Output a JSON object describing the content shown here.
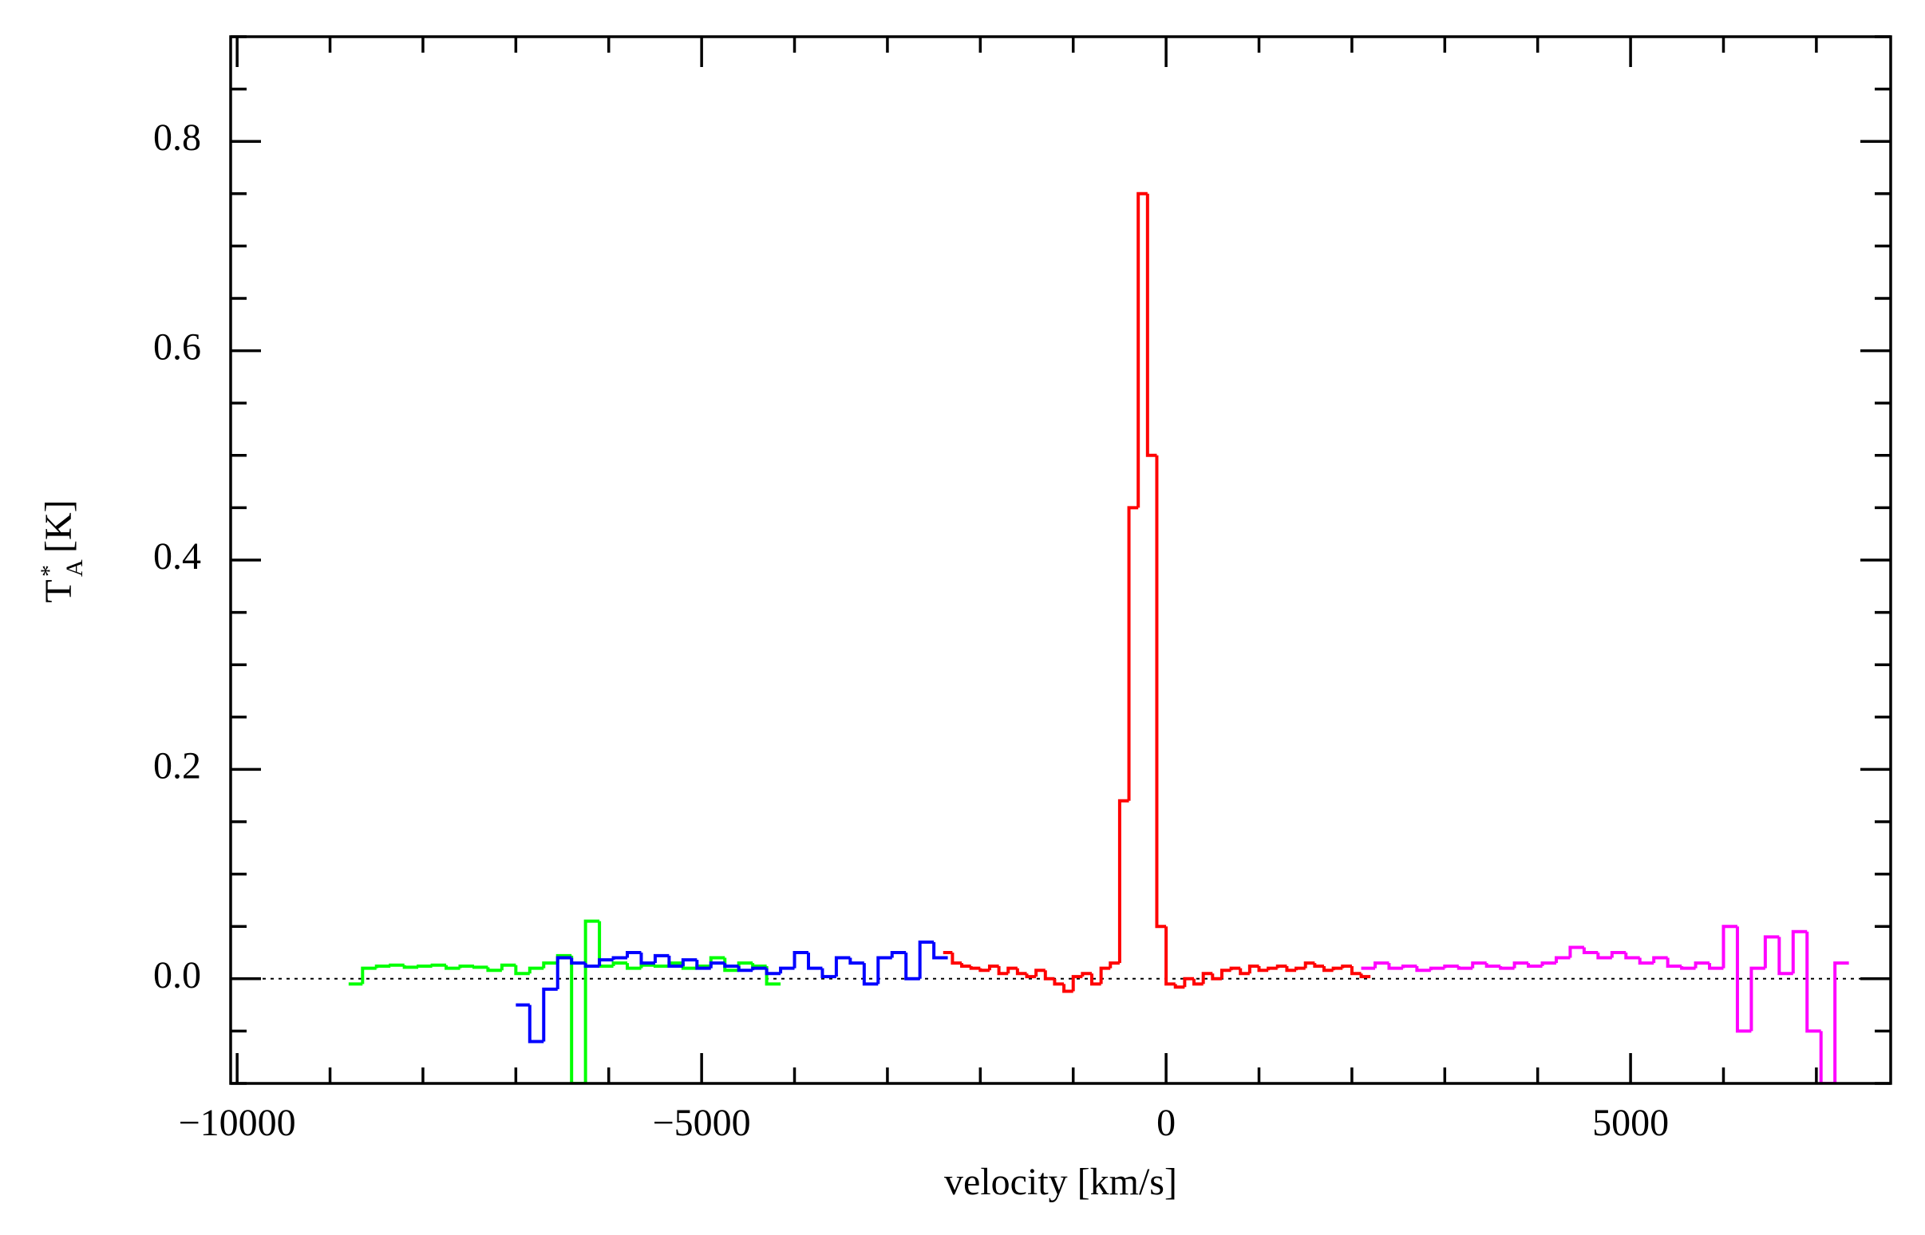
{
  "chart_data": {
    "type": "step",
    "xlabel": "velocity [km/s]",
    "ylabel": {
      "main": "T",
      "sup": "*",
      "sub": "A",
      "unit": "[K]"
    },
    "xlim": [
      -10070,
      7800
    ],
    "ylim": [
      -0.1,
      0.9
    ],
    "xticks": [
      -10000,
      -5000,
      0,
      5000
    ],
    "yticks": [
      {
        "value": 0,
        "label": "0.0"
      },
      0.2,
      0.4,
      0.6,
      0.8
    ],
    "hline": 0,
    "series": [
      {
        "color": "#00ff00",
        "x": [
          -8800,
          -8650,
          -8500,
          -8350,
          -8200,
          -8050,
          -7900,
          -7750,
          -7600,
          -7450,
          -7300,
          -7150,
          -7000,
          -6850,
          -6700,
          -6550,
          -6400,
          -6250,
          -6100,
          -5950,
          -5800,
          -5650,
          -5500,
          -5350,
          -5200,
          -5050,
          -4900,
          -4750,
          -4600,
          -4450,
          -4300
        ],
        "values": [
          -0.005,
          0.01,
          0.012,
          0.013,
          0.011,
          0.012,
          0.013,
          0.01,
          0.012,
          0.011,
          0.008,
          0.013,
          0.005,
          0.01,
          0.015,
          0.022,
          -0.1,
          0.055,
          0.012,
          0.015,
          0.01,
          0.013,
          0.012,
          0.015,
          0.01,
          0.012,
          0.02,
          0.008,
          0.015,
          0.012,
          -0.005
        ]
      },
      {
        "color": "#0000ff",
        "x": [
          -7000,
          -6850,
          -6700,
          -6550,
          -6400,
          -6250,
          -6100,
          -5950,
          -5800,
          -5650,
          -5500,
          -5350,
          -5200,
          -5050,
          -4900,
          -4750,
          -4600,
          -4450,
          -4300,
          -4150,
          -4000,
          -3850,
          -3700,
          -3550,
          -3400,
          -3250,
          -3100,
          -2950,
          -2800,
          -2650,
          -2500
        ],
        "values": [
          -0.025,
          -0.06,
          -0.01,
          0.02,
          0.015,
          0.012,
          0.018,
          0.02,
          0.025,
          0.015,
          0.022,
          0.012,
          0.018,
          0.01,
          0.015,
          0.012,
          0.008,
          0.01,
          0.005,
          0.01,
          0.025,
          0.01,
          0.002,
          0.02,
          0.015,
          -0.005,
          0.02,
          0.025,
          0.0,
          0.035,
          0.02
        ]
      },
      {
        "color": "#ff0000",
        "x": [
          -2400,
          -2300,
          -2200,
          -2100,
          -2000,
          -1900,
          -1800,
          -1700,
          -1600,
          -1500,
          -1400,
          -1300,
          -1200,
          -1100,
          -1000,
          -900,
          -800,
          -700,
          -600,
          -500,
          -400,
          -300,
          -200,
          -100,
          0,
          100,
          200,
          300,
          400,
          500,
          600,
          700,
          800,
          900,
          1000,
          1100,
          1200,
          1300,
          1400,
          1500,
          1600,
          1700,
          1800,
          1900,
          2000,
          2100
        ],
        "values": [
          0.025,
          0.015,
          0.012,
          0.01,
          0.008,
          0.012,
          0.005,
          0.01,
          0.005,
          0.002,
          0.008,
          0.0,
          -0.005,
          -0.012,
          0.002,
          0.005,
          -0.005,
          0.01,
          0.015,
          0.17,
          0.45,
          0.75,
          0.5,
          0.05,
          -0.005,
          -0.008,
          0.0,
          -0.005,
          0.005,
          0.0,
          0.008,
          0.01,
          0.005,
          0.012,
          0.008,
          0.01,
          0.012,
          0.008,
          0.01,
          0.015,
          0.012,
          0.008,
          0.01,
          0.012,
          0.005,
          0.002
        ]
      },
      {
        "color": "#ff00ff",
        "x": [
          2100,
          2250,
          2400,
          2550,
          2700,
          2850,
          3000,
          3150,
          3300,
          3450,
          3600,
          3750,
          3900,
          4050,
          4200,
          4350,
          4500,
          4650,
          4800,
          4950,
          5100,
          5250,
          5400,
          5550,
          5700,
          5850,
          6000,
          6150,
          6300,
          6450,
          6600,
          6750,
          6900,
          7050,
          7200
        ],
        "values": [
          0.01,
          0.015,
          0.01,
          0.012,
          0.008,
          0.01,
          0.012,
          0.01,
          0.015,
          0.012,
          0.01,
          0.015,
          0.012,
          0.015,
          0.02,
          0.03,
          0.025,
          0.02,
          0.025,
          0.02,
          0.015,
          0.02,
          0.012,
          0.01,
          0.015,
          0.01,
          0.05,
          -0.05,
          0.01,
          0.04,
          0.005,
          0.045,
          -0.05,
          -0.1,
          0.015
        ]
      }
    ]
  }
}
